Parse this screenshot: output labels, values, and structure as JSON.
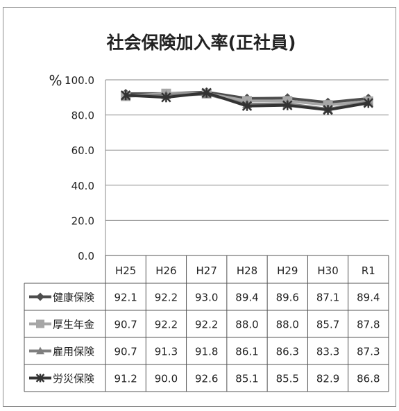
{
  "chart_data": {
    "type": "line",
    "title": "社会保険加入率(正社員)",
    "ylabel": "%",
    "ylim": [
      0,
      100
    ],
    "yticks": [
      "0.0",
      "20.0",
      "40.0",
      "60.0",
      "80.0",
      "100.0"
    ],
    "categories": [
      "H25",
      "H26",
      "H27",
      "H28",
      "H29",
      "H30",
      "R1"
    ],
    "grid": true,
    "legend": "data-table-left",
    "series": [
      {
        "name": "健康保険",
        "marker": "diamond",
        "color": "#4d4d4d",
        "values": [
          92.1,
          92.2,
          93.0,
          89.4,
          89.6,
          87.1,
          89.4
        ],
        "labels": [
          "92.1",
          "92.2",
          "93.0",
          "89.4",
          "89.6",
          "87.1",
          "89.4"
        ]
      },
      {
        "name": "厚生年金",
        "marker": "square",
        "color": "#a6a6a6",
        "values": [
          90.7,
          92.2,
          92.2,
          88.0,
          88.0,
          85.7,
          87.8
        ],
        "labels": [
          "90.7",
          "92.2",
          "92.2",
          "88.0",
          "88.0",
          "85.7",
          "87.8"
        ]
      },
      {
        "name": "雇用保険",
        "marker": "triangle",
        "color": "#7f7f7f",
        "values": [
          90.7,
          91.3,
          91.8,
          86.1,
          86.3,
          83.3,
          87.3
        ],
        "labels": [
          "90.7",
          "91.3",
          "91.8",
          "86.1",
          "86.3",
          "83.3",
          "87.3"
        ]
      },
      {
        "name": "労災保険",
        "marker": "star",
        "color": "#333333",
        "values": [
          91.2,
          90.0,
          92.6,
          85.1,
          85.5,
          82.9,
          86.8
        ],
        "labels": [
          "91.2",
          "90.0",
          "92.6",
          "85.1",
          "85.5",
          "82.9",
          "86.8"
        ]
      }
    ]
  }
}
